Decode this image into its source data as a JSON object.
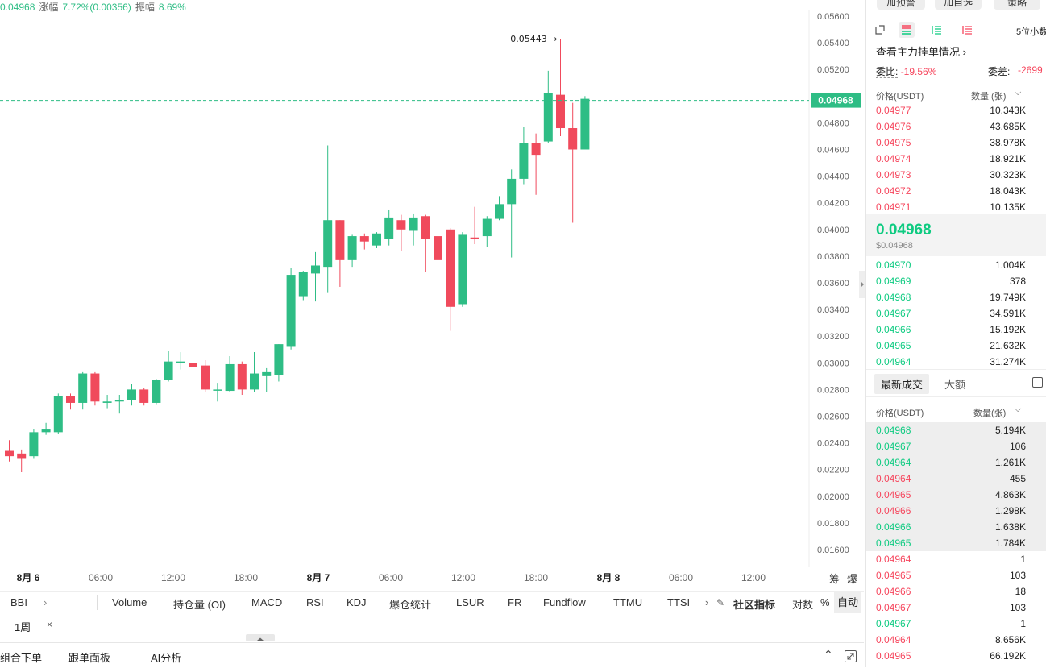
{
  "ticker": {
    "price": "0.04968",
    "change_label": "涨幅",
    "change_value": "7.72%(0.00356)",
    "amp_label": "振幅",
    "amp_value": "8.69%"
  },
  "chart": {
    "price_axis": [
      "0.05600",
      "0.05400",
      "0.05200",
      "0.05000",
      "0.04800",
      "0.04600",
      "0.04400",
      "0.04200",
      "0.04000",
      "0.03800",
      "0.03600",
      "0.03400",
      "0.03200",
      "0.03000",
      "0.02800",
      "0.02600",
      "0.02400",
      "0.02200",
      "0.02000",
      "0.01800",
      "0.01600"
    ],
    "time_axis": [
      {
        "label": "8月 6",
        "bold": true
      },
      {
        "label": "06:00",
        "bold": false
      },
      {
        "label": "12:00",
        "bold": false
      },
      {
        "label": "18:00",
        "bold": false
      },
      {
        "label": "8月 7",
        "bold": true
      },
      {
        "label": "06:00",
        "bold": false
      },
      {
        "label": "12:00",
        "bold": false
      },
      {
        "label": "18:00",
        "bold": false
      },
      {
        "label": "8月 8",
        "bold": true
      },
      {
        "label": "06:00",
        "bold": false
      },
      {
        "label": "12:00",
        "bold": false
      }
    ],
    "last_price": "0.04968",
    "high_marker": "0.05443 →",
    "axis_buttons": [
      "筹",
      "爆"
    ],
    "colors": {
      "up": "#2ebd85",
      "down": "#f04a5c"
    },
    "candles": [
      [
        0.0234,
        0.023,
        0.0242,
        0.0226
      ],
      [
        0.0232,
        0.0228,
        0.0235,
        0.0218
      ],
      [
        0.023,
        0.0248,
        0.025,
        0.0228
      ],
      [
        0.0248,
        0.025,
        0.0255,
        0.0246
      ],
      [
        0.0248,
        0.0275,
        0.0277,
        0.0247
      ],
      [
        0.0275,
        0.027,
        0.0277,
        0.0265
      ],
      [
        0.027,
        0.0292,
        0.0293,
        0.0265
      ],
      [
        0.0292,
        0.0271,
        0.0293,
        0.0268
      ],
      [
        0.027,
        0.0271,
        0.0276,
        0.0266
      ],
      [
        0.0271,
        0.0272,
        0.0276,
        0.0262
      ],
      [
        0.0272,
        0.028,
        0.0284,
        0.0268
      ],
      [
        0.028,
        0.027,
        0.0281,
        0.0268
      ],
      [
        0.027,
        0.0287,
        0.0288,
        0.0269
      ],
      [
        0.0287,
        0.0301,
        0.0309,
        0.0286
      ],
      [
        0.03,
        0.0301,
        0.0308,
        0.0295
      ],
      [
        0.03,
        0.0297,
        0.0318,
        0.0294
      ],
      [
        0.0298,
        0.028,
        0.0302,
        0.0278
      ],
      [
        0.028,
        0.028,
        0.0285,
        0.0271
      ],
      [
        0.0279,
        0.0299,
        0.0305,
        0.0278
      ],
      [
        0.0299,
        0.028,
        0.0301,
        0.0276
      ],
      [
        0.028,
        0.0292,
        0.0308,
        0.0278
      ],
      [
        0.029,
        0.0293,
        0.0296,
        0.0278
      ],
      [
        0.0291,
        0.0314,
        0.0314,
        0.0286
      ],
      [
        0.0312,
        0.0366,
        0.0371,
        0.031
      ],
      [
        0.035,
        0.0368,
        0.0369,
        0.0347
      ],
      [
        0.0367,
        0.0373,
        0.0383,
        0.0346
      ],
      [
        0.0372,
        0.0407,
        0.0463,
        0.0353
      ],
      [
        0.0407,
        0.0377,
        0.0407,
        0.0357
      ],
      [
        0.0377,
        0.0395,
        0.0396,
        0.0372
      ],
      [
        0.0395,
        0.0391,
        0.0397,
        0.0385
      ],
      [
        0.0388,
        0.0397,
        0.0398,
        0.0386
      ],
      [
        0.0393,
        0.0409,
        0.0415,
        0.0388
      ],
      [
        0.0407,
        0.04,
        0.0411,
        0.0384
      ],
      [
        0.0399,
        0.0409,
        0.0412,
        0.0388
      ],
      [
        0.041,
        0.0393,
        0.0411,
        0.0368
      ],
      [
        0.0395,
        0.0377,
        0.0401,
        0.0373
      ],
      [
        0.04,
        0.0342,
        0.0401,
        0.0324
      ],
      [
        0.0344,
        0.0396,
        0.0398,
        0.0342
      ],
      [
        0.0394,
        0.0393,
        0.0417,
        0.0389
      ],
      [
        0.0395,
        0.0408,
        0.041,
        0.0387
      ],
      [
        0.0408,
        0.0419,
        0.0425,
        0.0407
      ],
      [
        0.0419,
        0.0438,
        0.0445,
        0.0379
      ],
      [
        0.0438,
        0.0465,
        0.0477,
        0.0434
      ],
      [
        0.0465,
        0.0456,
        0.0472,
        0.0426
      ],
      [
        0.0466,
        0.0502,
        0.0519,
        0.0465
      ],
      [
        0.0501,
        0.0476,
        0.0543,
        0.047
      ],
      [
        0.0476,
        0.046,
        0.0495,
        0.0405
      ],
      [
        0.046,
        0.0498,
        0.05,
        0.046
      ]
    ]
  },
  "indicators": {
    "main": "BBI",
    "items": [
      "Volume",
      "持仓量 (OI)",
      "MACD",
      "RSI",
      "KDJ",
      "爆仓统计",
      "LSUR",
      "FR",
      "Fundflow",
      "TTMU",
      "TTSI"
    ],
    "community": "社区指标",
    "log": "对数",
    "percent": "%",
    "auto": "自动"
  },
  "timeframe": {
    "label": "1周"
  },
  "bottom": {
    "items": [
      "组合下单",
      "跟单面板",
      "AI分析"
    ]
  },
  "panel": {
    "top_buttons": [
      "加预警",
      "加自选",
      "策略"
    ],
    "precision": "5位小数",
    "main_orders": "查看主力挂单情况",
    "bid_ratio_label": "委比:",
    "bid_ratio": "-19.56%",
    "bid_diff_label": "委差:",
    "bid_diff": "-2699",
    "book_header": {
      "price": "价格(USDT)",
      "qty": "数量 (张)"
    },
    "asks": [
      {
        "p": "0.04977",
        "q": "10.343K"
      },
      {
        "p": "0.04976",
        "q": "43.685K"
      },
      {
        "p": "0.04975",
        "q": "38.978K"
      },
      {
        "p": "0.04974",
        "q": "18.921K"
      },
      {
        "p": "0.04973",
        "q": "30.323K"
      },
      {
        "p": "0.04972",
        "q": "18.043K"
      },
      {
        "p": "0.04971",
        "q": "10.135K"
      }
    ],
    "mid_price": "0.04968",
    "mid_usd": "$0.04968",
    "bids": [
      {
        "p": "0.04970",
        "q": "1.004K"
      },
      {
        "p": "0.04969",
        "q": "378"
      },
      {
        "p": "0.04968",
        "q": "19.749K"
      },
      {
        "p": "0.04967",
        "q": "34.591K"
      },
      {
        "p": "0.04966",
        "q": "15.192K"
      },
      {
        "p": "0.04965",
        "q": "21.632K"
      },
      {
        "p": "0.04964",
        "q": "31.274K"
      }
    ],
    "trades_tab": "最新成交",
    "large_tab": "大额",
    "trades_header": {
      "price": "价格(USDT)",
      "qty": "数量(张)"
    },
    "trades": [
      {
        "p": "0.04968",
        "q": "5.194K",
        "side": "buy"
      },
      {
        "p": "0.04967",
        "q": "106",
        "side": "buy"
      },
      {
        "p": "0.04964",
        "q": "1.261K",
        "side": "buy"
      },
      {
        "p": "0.04964",
        "q": "455",
        "side": "sell"
      },
      {
        "p": "0.04965",
        "q": "4.863K",
        "side": "sell"
      },
      {
        "p": "0.04966",
        "q": "1.298K",
        "side": "sell"
      },
      {
        "p": "0.04966",
        "q": "1.638K",
        "side": "buy"
      },
      {
        "p": "0.04965",
        "q": "1.784K",
        "side": "buy"
      },
      {
        "p": "0.04964",
        "q": "1",
        "side": "sell"
      },
      {
        "p": "0.04965",
        "q": "103",
        "side": "sell"
      },
      {
        "p": "0.04966",
        "q": "18",
        "side": "sell"
      },
      {
        "p": "0.04967",
        "q": "103",
        "side": "sell"
      },
      {
        "p": "0.04967",
        "q": "1",
        "side": "buy"
      },
      {
        "p": "0.04964",
        "q": "8.656K",
        "side": "sell"
      },
      {
        "p": "0.04965",
        "q": "66.192K",
        "side": "sell"
      }
    ]
  }
}
